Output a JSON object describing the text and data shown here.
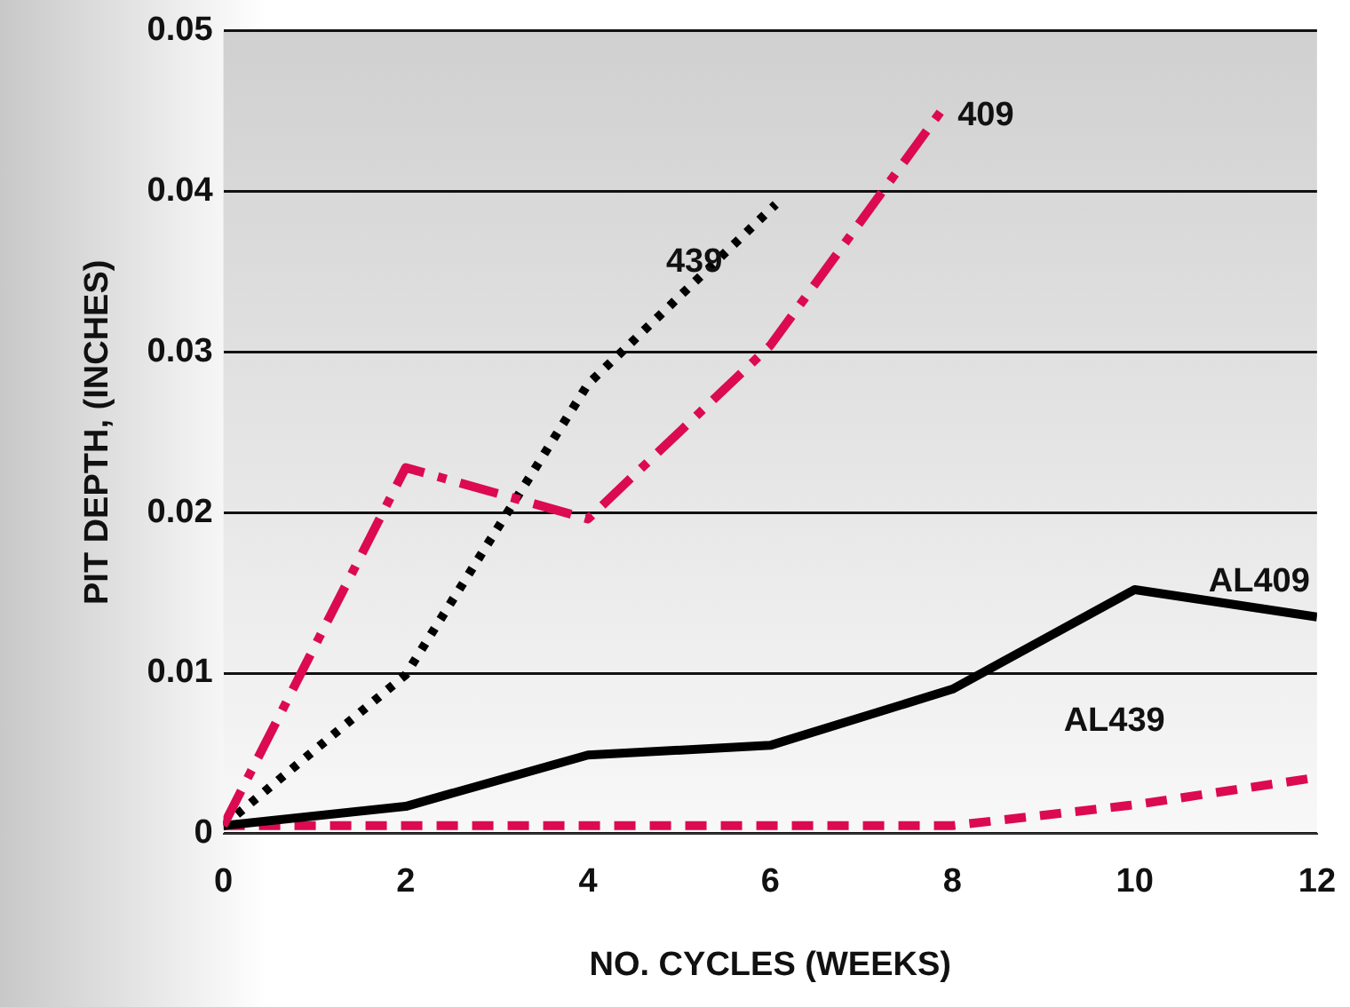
{
  "chart_data": {
    "type": "line",
    "xlabel": "NO. CYCLES (WEEKS)",
    "ylabel": "PIT DEPTH, (INCHES)",
    "xlim": [
      0,
      12
    ],
    "xticks": [
      0,
      2,
      4,
      6,
      8,
      10,
      12
    ],
    "ylim": [
      0,
      0.05
    ],
    "yticks": [
      0,
      0.01,
      0.02,
      0.03,
      0.04,
      0.05
    ],
    "grid": "y",
    "legend": false,
    "marker": "none",
    "series": [
      {
        "name": "409",
        "color": "#dc0a50",
        "line_style": "dashdot",
        "x": [
          0,
          2,
          4,
          6,
          7.9
        ],
        "values": [
          0.0005,
          0.0228,
          0.0196,
          0.0304,
          0.0452
        ]
      },
      {
        "name": "439",
        "color": "#000000",
        "line_style": "dotted",
        "x": [
          0,
          2,
          4,
          6.06
        ],
        "values": [
          0.0005,
          0.0099,
          0.028,
          0.0392
        ]
      },
      {
        "name": "AL409",
        "color": "#000000",
        "line_style": "solid",
        "x": [
          0,
          2,
          4,
          6,
          8,
          10,
          12
        ],
        "values": [
          0.0005,
          0.0017,
          0.0049,
          0.0055,
          0.009,
          0.0152,
          0.0135
        ]
      },
      {
        "name": "AL439",
        "color": "#dc0a50",
        "line_style": "dashed",
        "x": [
          0,
          2,
          4,
          6,
          8,
          10,
          12
        ],
        "values": [
          0.0005,
          0.0005,
          0.0005,
          0.0005,
          0.0005,
          0.0018,
          0.0035
        ]
      }
    ]
  }
}
